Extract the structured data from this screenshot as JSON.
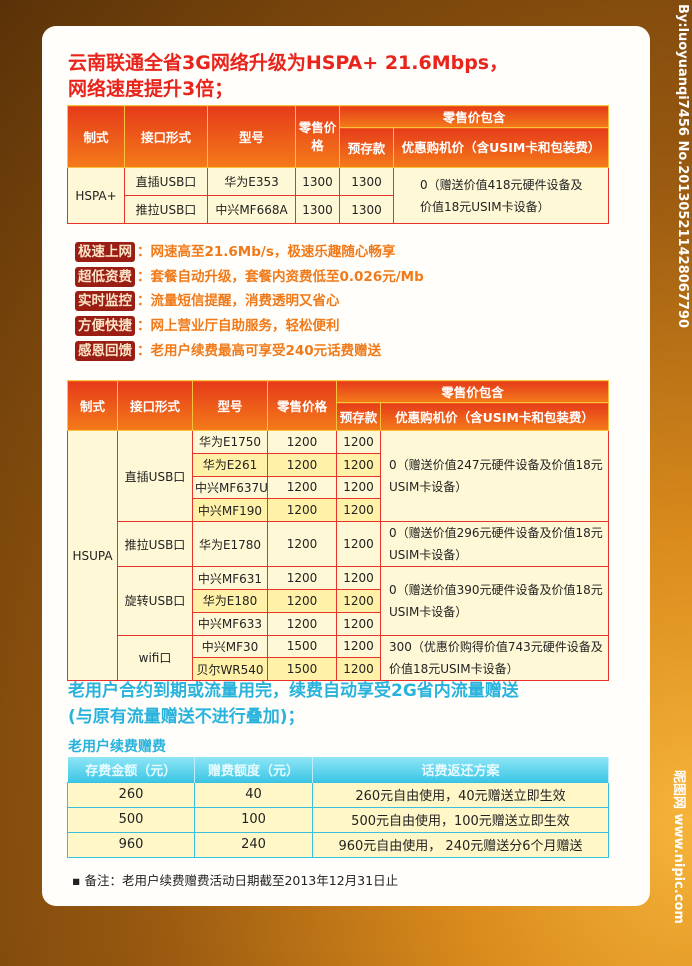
{
  "heading": {
    "line1": "云南联通全省3G网络升级为HSPA+ 21.6Mbps，",
    "line2": "网络速度提升3倍；"
  },
  "table1": {
    "headers": {
      "mode": "制式",
      "interface": "接口形式",
      "model": "型号",
      "retail": "零售价格",
      "includes": "零售价包含",
      "deposit": "预存款",
      "discount": "优惠购机价（含USIM卡和包装费）"
    },
    "mode": "HSPA+",
    "rows": [
      {
        "interface": "直插USB口",
        "model": "华为E353",
        "retail": "1300",
        "deposit": "1300"
      },
      {
        "interface": "推拉USB口",
        "model": "中兴MF668A",
        "retail": "1300",
        "deposit": "1300"
      }
    ],
    "discount": "0（赠送价值418元硬件设备及价值18元USIM卡设备）"
  },
  "features": [
    {
      "label": "极速上网",
      "text": "：网速高至21.6Mb/s，极速乐趣随心畅享"
    },
    {
      "label": "超低资费",
      "text": "：套餐自动升级，套餐内资费低至0.026元/Mb"
    },
    {
      "label": "实时监控",
      "text": "：流量短信提醒，消费透明又省心"
    },
    {
      "label": "方便快捷",
      "text": "：网上营业厅自助服务，轻松便利"
    },
    {
      "label": "感恩回馈",
      "text": "：老用户续费最高可享受240元话费赠送"
    }
  ],
  "table2": {
    "headers": {
      "mode": "制式",
      "interface": "接口形式",
      "model": "型号",
      "retail": "零售价格",
      "includes": "零售价包含",
      "deposit": "预存款",
      "discount": "优惠购机价（含USIM卡和包装费）"
    },
    "mode": "HSUPA",
    "groups": [
      {
        "interface": "直插USB口",
        "discount": "0（赠送价值247元硬件设备及价值18元USIM卡设备）",
        "rows": [
          [
            "华为E1750",
            "1200",
            "1200"
          ],
          [
            "华为E261",
            "1200",
            "1200"
          ],
          [
            "中兴MF637U",
            "1200",
            "1200"
          ],
          [
            "中兴MF190",
            "1200",
            "1200"
          ]
        ]
      },
      {
        "interface": "推拉USB口",
        "discount": "0（赠送价值296元硬件设备及价值18元USIM卡设备）",
        "rows": [
          [
            "华为E1780",
            "1200",
            "1200"
          ]
        ]
      },
      {
        "interface": "旋转USB口",
        "discount": "0（赠送价值390元硬件设备及价值18元USIM卡设备）",
        "rows": [
          [
            "中兴MF631",
            "1200",
            "1200"
          ],
          [
            "华为E180",
            "1200",
            "1200"
          ],
          [
            "中兴MF633",
            "1200",
            "1200"
          ]
        ]
      },
      {
        "interface": "wifi口",
        "discount": "300（优惠价购得价值743元硬件设备及价值18元USIM卡设备）",
        "rows": [
          [
            "中兴MF30",
            "1500",
            "1200"
          ],
          [
            "贝尔WR540",
            "1500",
            "1200"
          ]
        ]
      }
    ]
  },
  "renewal": {
    "title1": "老用户合约到期或流量用完，续费自动享受2G省内流量赠送",
    "title2": "(与原有流量赠送不进行叠加)；",
    "subtitle": "老用户续费赠费",
    "headers": [
      "存费金额（元）",
      "赠费额度（元）",
      "话费返还方案"
    ],
    "rows": [
      [
        "260",
        "40",
        "260元自由使用，40元赠送立即生效"
      ],
      [
        "500",
        "100",
        "500元自由使用，100元赠送立即生效"
      ],
      [
        "960",
        "240",
        "960元自由使用， 240元赠送分6个月赠送"
      ]
    ],
    "note": "▪ 备注：老用户续费赠费活动日期截至2013年12月31日止"
  },
  "watermark": {
    "top": "By:luoyuanqi7456 No.20130521142806779​0",
    "bottom": "昵图网 www.nipic.com"
  },
  "colors": {
    "red": "#e8241c",
    "orange": "#f07a1a",
    "blue": "#29b3dc",
    "cell": "#fff8d6"
  }
}
